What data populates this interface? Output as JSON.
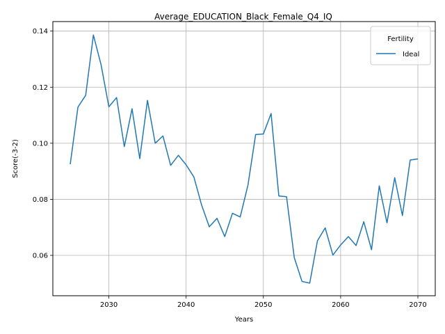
{
  "chart_data": {
    "type": "line",
    "title": "Average_EDUCATION_Black_Female_Q4_IQ",
    "xlabel": "Years",
    "ylabel": "Score(-3-2)",
    "xlim": [
      2022.75,
      2072.25
    ],
    "ylim": [
      0.0456,
      0.1434
    ],
    "xticks": [
      2030,
      2040,
      2050,
      2060,
      2070
    ],
    "yticks": [
      0.06,
      0.08,
      0.1,
      0.12,
      0.14
    ],
    "ytick_labels": [
      "0.06",
      "0.08",
      "0.10",
      "0.12",
      "0.14"
    ],
    "grid": true,
    "legend": {
      "title": "Fertility",
      "position": "top-right"
    },
    "series": [
      {
        "name": "Ideal",
        "color": "#1f77b4",
        "x": [
          2025,
          2026,
          2027,
          2028,
          2029,
          2030,
          2031,
          2032,
          2033,
          2034,
          2035,
          2036,
          2037,
          2038,
          2039,
          2040,
          2041,
          2042,
          2043,
          2044,
          2045,
          2046,
          2047,
          2048,
          2049,
          2050,
          2051,
          2052,
          2053,
          2054,
          2055,
          2056,
          2057,
          2058,
          2059,
          2060,
          2061,
          2062,
          2063,
          2064,
          2065,
          2066,
          2067,
          2068,
          2069,
          2070
        ],
        "y": [
          0.0925,
          0.1129,
          0.1171,
          0.1386,
          0.1279,
          0.113,
          0.1163,
          0.0988,
          0.1123,
          0.0945,
          0.1153,
          0.1,
          0.1026,
          0.0921,
          0.0957,
          0.0923,
          0.088,
          0.078,
          0.0702,
          0.0732,
          0.0667,
          0.075,
          0.0737,
          0.085,
          0.1031,
          0.1033,
          0.1106,
          0.0812,
          0.0809,
          0.0592,
          0.0507,
          0.0501,
          0.0652,
          0.0698,
          0.0601,
          0.0637,
          0.0667,
          0.0635,
          0.072,
          0.062,
          0.0848,
          0.0716,
          0.0877,
          0.0742,
          0.094,
          0.0944
        ]
      }
    ]
  }
}
